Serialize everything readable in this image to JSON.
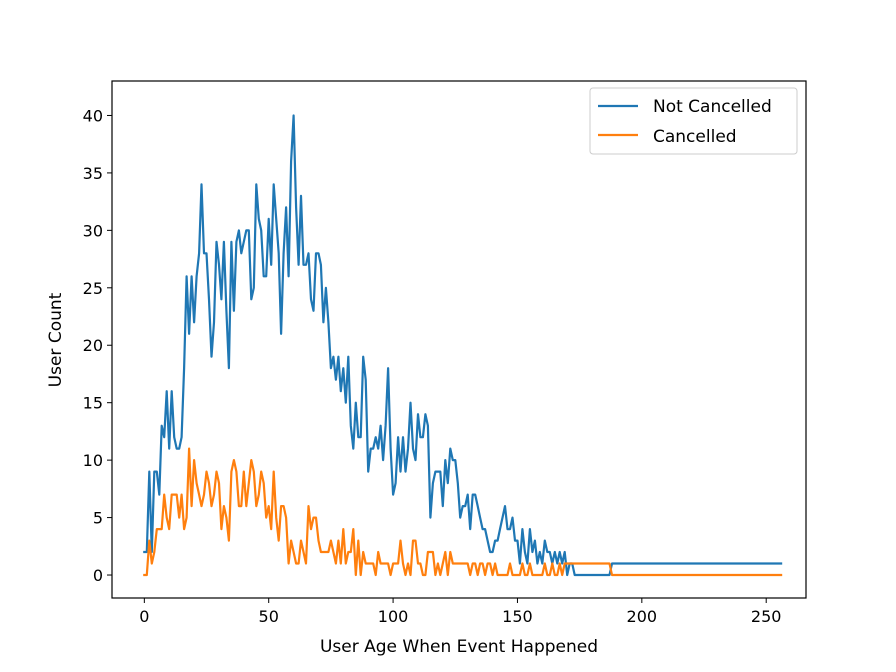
{
  "chart_data": {
    "type": "line",
    "title": "",
    "xlabel": "User Age When Event Happened",
    "ylabel": "User Count",
    "xlim": [
      -13,
      266
    ],
    "ylim": [
      -2,
      43
    ],
    "xticks": [
      0,
      50,
      100,
      150,
      200,
      250
    ],
    "yticks": [
      0,
      5,
      10,
      15,
      20,
      25,
      30,
      35,
      40
    ],
    "xtick_labels": [
      "0",
      "50",
      "100",
      "150",
      "200",
      "250"
    ],
    "ytick_labels": [
      "0",
      "5",
      "10",
      "15",
      "20",
      "25",
      "30",
      "35",
      "40"
    ],
    "grid": false,
    "legend_position": "top-right",
    "series": [
      {
        "name": "Not Cancelled",
        "color": "#1f77b4",
        "x": [
          0,
          1,
          2,
          3,
          4,
          5,
          6,
          7,
          8,
          9,
          10,
          11,
          12,
          13,
          14,
          15,
          16,
          17,
          18,
          19,
          20,
          21,
          22,
          23,
          24,
          25,
          26,
          27,
          28,
          29,
          30,
          31,
          32,
          33,
          34,
          35,
          36,
          37,
          38,
          39,
          40,
          41,
          42,
          43,
          44,
          45,
          46,
          47,
          48,
          49,
          50,
          51,
          52,
          53,
          54,
          55,
          56,
          57,
          58,
          59,
          60,
          61,
          62,
          63,
          64,
          65,
          66,
          67,
          68,
          69,
          70,
          71,
          72,
          73,
          74,
          75,
          76,
          77,
          78,
          79,
          80,
          81,
          82,
          83,
          84,
          85,
          86,
          87,
          88,
          89,
          90,
          91,
          92,
          93,
          94,
          95,
          96,
          97,
          98,
          99,
          100,
          101,
          102,
          103,
          104,
          105,
          106,
          107,
          108,
          109,
          110,
          111,
          112,
          113,
          114,
          115,
          116,
          117,
          118,
          119,
          120,
          121,
          122,
          123,
          124,
          125,
          126,
          127,
          128,
          129,
          130,
          131,
          132,
          133,
          134,
          135,
          136,
          137,
          138,
          139,
          140,
          141,
          142,
          143,
          144,
          145,
          146,
          147,
          148,
          149,
          150,
          151,
          152,
          153,
          154,
          155,
          156,
          157,
          158,
          159,
          160,
          161,
          162,
          163,
          164,
          165,
          166,
          167,
          168,
          169,
          170,
          171,
          172,
          173,
          174,
          175,
          176,
          177,
          178,
          179,
          180,
          181,
          182,
          183,
          184,
          185,
          186,
          187,
          188,
          189,
          190,
          256
        ],
        "values": [
          2,
          2,
          9,
          2,
          9,
          9,
          7,
          13,
          12,
          16,
          11,
          16,
          12,
          11,
          11,
          12,
          18,
          26,
          21,
          26,
          22,
          26,
          28,
          34,
          28,
          28,
          24,
          19,
          22,
          29,
          27,
          24,
          29,
          23,
          18,
          29,
          23,
          29,
          30,
          28,
          29,
          30,
          30,
          24,
          25,
          34,
          31,
          30,
          26,
          26,
          31,
          27,
          34,
          31,
          28,
          21,
          28,
          32,
          26,
          36,
          40,
          32,
          27,
          33,
          27,
          27,
          28,
          24,
          23,
          28,
          28,
          27,
          22,
          25,
          22,
          18,
          19,
          17,
          19,
          16,
          18,
          15,
          19,
          13,
          11,
          15,
          12,
          12,
          19,
          17,
          9,
          11,
          11,
          12,
          11,
          13,
          10,
          13,
          18,
          11,
          7,
          8,
          12,
          9,
          12,
          9,
          11,
          15,
          11,
          10,
          14,
          12,
          12,
          14,
          13,
          5,
          8,
          9,
          9,
          9,
          6,
          10,
          8,
          11,
          10,
          10,
          8,
          5,
          6,
          6,
          7,
          4,
          7,
          7,
          6,
          5,
          4,
          4,
          3,
          2,
          2,
          3,
          3,
          4,
          5,
          6,
          4,
          4,
          5,
          3,
          3,
          1,
          4,
          2,
          1,
          4,
          2,
          3,
          1,
          2,
          1,
          3,
          2,
          2,
          1,
          2,
          1,
          2,
          1,
          2,
          0,
          1,
          1,
          0,
          0,
          0,
          0,
          0,
          0,
          0,
          0,
          0,
          0,
          0,
          0,
          0,
          0,
          0,
          1,
          1,
          1,
          1
        ]
      },
      {
        "name": "Cancelled",
        "color": "#ff7f0e",
        "x": [
          0,
          1,
          2,
          3,
          4,
          5,
          6,
          7,
          8,
          9,
          10,
          11,
          12,
          13,
          14,
          15,
          16,
          17,
          18,
          19,
          20,
          21,
          22,
          23,
          24,
          25,
          26,
          27,
          28,
          29,
          30,
          31,
          32,
          33,
          34,
          35,
          36,
          37,
          38,
          39,
          40,
          41,
          42,
          43,
          44,
          45,
          46,
          47,
          48,
          49,
          50,
          51,
          52,
          53,
          54,
          55,
          56,
          57,
          58,
          59,
          60,
          61,
          62,
          63,
          64,
          65,
          66,
          67,
          68,
          69,
          70,
          71,
          72,
          73,
          74,
          75,
          76,
          77,
          78,
          79,
          80,
          81,
          82,
          83,
          84,
          85,
          86,
          87,
          88,
          89,
          90,
          91,
          92,
          93,
          94,
          95,
          96,
          97,
          98,
          99,
          100,
          101,
          102,
          103,
          104,
          105,
          106,
          107,
          108,
          109,
          110,
          111,
          112,
          113,
          114,
          115,
          116,
          117,
          118,
          119,
          120,
          121,
          122,
          123,
          124,
          125,
          126,
          127,
          128,
          129,
          130,
          131,
          132,
          133,
          134,
          135,
          136,
          137,
          138,
          139,
          140,
          141,
          142,
          143,
          144,
          145,
          146,
          147,
          148,
          149,
          150,
          151,
          152,
          153,
          154,
          155,
          156,
          157,
          158,
          159,
          160,
          161,
          162,
          163,
          164,
          165,
          166,
          167,
          168,
          169,
          170,
          171,
          172,
          173,
          174,
          175,
          176,
          177,
          178,
          179,
          180,
          181,
          182,
          183,
          184,
          185,
          186,
          187,
          188,
          189,
          190,
          256
        ],
        "values": [
          0,
          0,
          3,
          1,
          2,
          4,
          4,
          4,
          7,
          5,
          4,
          7,
          7,
          7,
          5,
          7,
          4,
          5,
          11,
          6,
          10,
          8,
          7,
          6,
          7,
          9,
          8,
          6,
          7,
          9,
          8,
          4,
          6,
          5,
          3,
          9,
          10,
          9,
          6,
          6,
          9,
          6,
          8,
          10,
          9,
          6,
          7,
          9,
          8,
          5,
          6,
          4,
          9,
          5,
          3,
          6,
          6,
          5,
          1,
          3,
          2,
          1,
          1,
          3,
          2,
          1,
          6,
          4,
          5,
          5,
          3,
          2,
          2,
          2,
          2,
          3,
          2,
          1,
          3,
          1,
          4,
          1,
          2,
          2,
          4,
          0,
          3,
          0,
          2,
          1,
          1,
          1,
          1,
          0,
          2,
          1,
          1,
          1,
          1,
          0,
          1,
          1,
          1,
          3,
          1,
          0,
          1,
          0,
          3,
          3,
          1,
          1,
          0,
          0,
          2,
          2,
          2,
          0,
          1,
          0,
          1,
          2,
          0,
          2,
          1,
          1,
          1,
          1,
          1,
          1,
          1,
          0,
          1,
          1,
          0,
          1,
          1,
          0,
          1,
          1,
          0,
          1,
          0,
          0,
          0,
          0,
          0,
          1,
          0,
          0,
          0,
          0,
          1,
          0,
          0,
          1,
          0,
          0,
          0,
          0,
          0,
          1,
          0,
          0,
          1,
          0,
          0,
          1,
          0,
          1,
          1,
          1,
          1,
          1,
          1,
          1,
          1,
          1,
          1,
          1,
          1,
          1,
          1,
          1,
          1,
          1,
          1,
          1,
          0,
          0,
          0,
          0
        ]
      }
    ]
  }
}
